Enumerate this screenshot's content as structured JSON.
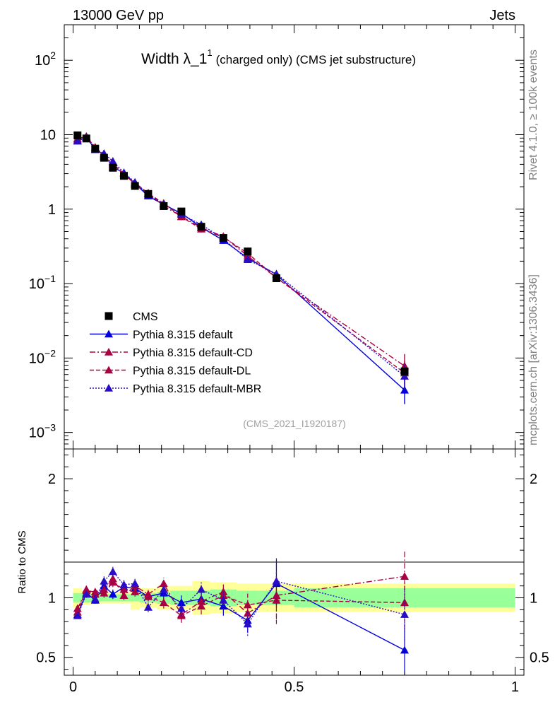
{
  "header": {
    "energy_label": "13000 GeV pp",
    "category_label": "Jets"
  },
  "side_labels": {
    "rivet": "Rivet 4.1.0, ≥ 100k events",
    "mcplots": "mcplots.cern.ch [arXiv:1306.3436]"
  },
  "chart_data": [
    {
      "type": "line",
      "panel": "main",
      "title_main": "Width λ_1",
      "title_sup": "1",
      "title_suffix": "(charged only) (CMS jet substructure)",
      "analysis_id": "(CMS_2021_I1920187)",
      "yscale": "log",
      "ylim": [
        0.0006,
        300
      ],
      "xlim": [
        -0.02,
        1.02
      ],
      "ytick_labels": [
        {
          "value": 0.001,
          "base": "10",
          "exp": "−3"
        },
        {
          "value": 0.01,
          "base": "10",
          "exp": "−2"
        },
        {
          "value": 0.1,
          "base": "10",
          "exp": "−1"
        },
        {
          "value": 1,
          "base": "1",
          "exp": ""
        },
        {
          "value": 10,
          "base": "10",
          "exp": ""
        },
        {
          "value": 100,
          "base": "10",
          "exp": "2"
        }
      ],
      "x": [
        0.01,
        0.03,
        0.05,
        0.07,
        0.09,
        0.115,
        0.14,
        0.17,
        0.205,
        0.245,
        0.29,
        0.34,
        0.395,
        0.46,
        0.75
      ],
      "data": {
        "name": "CMS",
        "values": [
          9.8,
          8.9,
          6.5,
          4.9,
          3.6,
          2.8,
          2.05,
          1.6,
          1.1,
          0.93,
          0.58,
          0.41,
          0.27,
          0.118,
          0.0066
        ]
      },
      "series": [
        {
          "name": "Pythia 8.315 default",
          "color": "#0000dd",
          "dash": "solid",
          "values": [
            8.2,
            9.3,
            6.3,
            5.4,
            3.7,
            3.05,
            2.2,
            1.5,
            1.15,
            0.88,
            0.57,
            0.38,
            0.22,
            0.132,
            0.0037
          ]
        },
        {
          "name": "Pythia 8.315 default-CD",
          "color": "#aa0044",
          "dash": "dashdot",
          "values": [
            8.9,
            9.4,
            6.8,
            5.2,
            4.2,
            2.85,
            2.25,
            1.65,
            1.1,
            0.8,
            0.56,
            0.43,
            0.235,
            0.12,
            0.0078
          ]
        },
        {
          "name": "Pythia 8.315 default-DL",
          "color": "#aa0044",
          "dash": "dash",
          "values": [
            8.6,
            9.5,
            6.7,
            5.1,
            4.05,
            3.0,
            2.15,
            1.62,
            1.2,
            0.79,
            0.54,
            0.42,
            0.255,
            0.12,
            0.0063
          ]
        },
        {
          "name": "Pythia 8.315 default-MBR",
          "color": "#2a0cc6",
          "dash": "dot",
          "values": [
            8.3,
            9.2,
            6.4,
            5.6,
            4.4,
            3.1,
            2.3,
            1.55,
            1.18,
            0.85,
            0.62,
            0.4,
            0.21,
            0.135,
            0.0057
          ]
        }
      ],
      "legend": [
        {
          "label": "CMS"
        },
        {
          "label": "Pythia 8.315 default"
        },
        {
          "label": "Pythia 8.315 default-CD"
        },
        {
          "label": "Pythia 8.315 default-DL"
        },
        {
          "label": "Pythia 8.315 default-MBR"
        }
      ]
    },
    {
      "type": "line",
      "panel": "ratio",
      "ylabel": "Ratio to CMS",
      "ylim": [
        0.35,
        2.25
      ],
      "xlim": [
        -0.02,
        1.02
      ],
      "ytick_labels": [
        {
          "value": 0.5,
          "label": "0.5"
        },
        {
          "value": 1,
          "label": "1"
        },
        {
          "value": 2,
          "label": "2"
        }
      ],
      "xtick_labels": [
        {
          "value": 0,
          "label": "0"
        },
        {
          "value": 0.5,
          "label": "0.5"
        },
        {
          "value": 1,
          "label": "1"
        }
      ],
      "bin_edges": [
        0.0,
        0.02,
        0.04,
        0.06,
        0.08,
        0.1,
        0.13,
        0.15,
        0.19,
        0.22,
        0.27,
        0.31,
        0.37,
        0.42,
        0.5,
        1.0
      ],
      "band_inner": [
        0.04,
        0.04,
        0.03,
        0.03,
        0.03,
        0.03,
        0.03,
        0.04,
        0.05,
        0.06,
        0.06,
        0.07,
        0.06,
        0.06,
        0.08
      ],
      "band_outer": [
        0.08,
        0.06,
        0.05,
        0.05,
        0.05,
        0.05,
        0.1,
        0.08,
        0.1,
        0.1,
        0.14,
        0.13,
        0.12,
        0.12,
        0.12
      ],
      "x": [
        0.01,
        0.03,
        0.05,
        0.07,
        0.09,
        0.115,
        0.14,
        0.17,
        0.205,
        0.245,
        0.29,
        0.34,
        0.395,
        0.46,
        0.75
      ],
      "series": [
        {
          "name": "Pythia 8.315 default",
          "color": "#0000dd",
          "dash": "solid",
          "values": [
            0.86,
            1.04,
            0.98,
            1.1,
            1.03,
            1.09,
            1.08,
            1.01,
            1.04,
            0.96,
            0.99,
            0.93,
            0.81,
            1.12,
            0.56
          ],
          "errors": [
            0.02,
            0.04,
            0.03,
            0.04,
            0.04,
            0.04,
            0.04,
            0.04,
            0.05,
            0.06,
            0.07,
            0.08,
            0.1,
            0.2,
            0.22
          ]
        },
        {
          "name": "Pythia 8.315 default-CD",
          "color": "#aa0044",
          "dash": "dashdot",
          "values": [
            0.91,
            1.06,
            1.05,
            1.07,
            1.16,
            1.02,
            1.1,
            1.03,
            1.12,
            0.86,
            0.97,
            1.05,
            0.87,
            1.02,
            1.18
          ],
          "errors": [
            0.02,
            0.03,
            0.03,
            0.04,
            0.04,
            0.04,
            0.04,
            0.04,
            0.05,
            0.06,
            0.07,
            0.08,
            0.1,
            0.2,
            0.22
          ]
        },
        {
          "name": "Pythia 8.315 default-DL",
          "color": "#aa0044",
          "dash": "dash",
          "values": [
            0.88,
            1.07,
            1.03,
            1.04,
            1.13,
            1.07,
            1.05,
            1.01,
            0.96,
            0.85,
            0.93,
            1.02,
            0.94,
            0.98,
            0.96
          ],
          "errors": [
            0.02,
            0.03,
            0.03,
            0.04,
            0.04,
            0.04,
            0.04,
            0.04,
            0.05,
            0.06,
            0.07,
            0.08,
            0.1,
            0.2,
            0.22
          ]
        },
        {
          "name": "Pythia 8.315 default-MBR",
          "color": "#2a0cc6",
          "dash": "dot",
          "values": [
            0.85,
            1.03,
            0.99,
            1.14,
            1.22,
            1.11,
            1.12,
            0.92,
            1.07,
            0.91,
            1.07,
            0.98,
            0.78,
            1.14,
            0.86
          ],
          "errors": [
            0.02,
            0.03,
            0.03,
            0.04,
            0.04,
            0.04,
            0.04,
            0.04,
            0.05,
            0.06,
            0.07,
            0.08,
            0.1,
            0.2,
            0.22
          ]
        }
      ]
    }
  ]
}
